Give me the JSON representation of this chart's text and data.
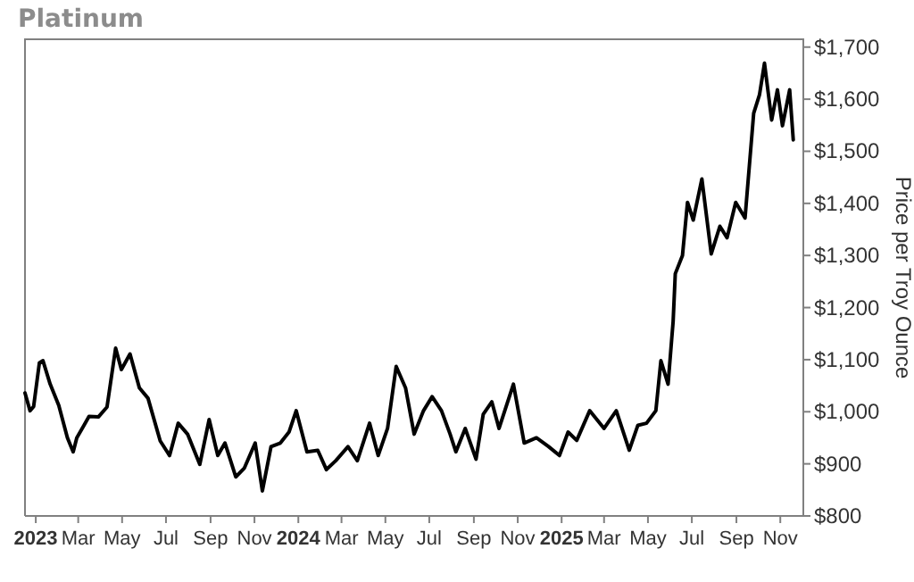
{
  "chart_data": {
    "type": "line",
    "title": "Platinum",
    "ylabel": "Price per Troy Ounce",
    "x": [
      "2022-12-17",
      "2022-12-24",
      "2022-12-29",
      "2023-01-06",
      "2023-01-11",
      "2023-01-21",
      "2023-02-02",
      "2023-02-14",
      "2023-02-22",
      "2023-02-27",
      "2023-03-09",
      "2023-03-16",
      "2023-03-29",
      "2023-04-10",
      "2023-04-22",
      "2023-04-30",
      "2023-05-12",
      "2023-05-25",
      "2023-06-06",
      "2023-06-23",
      "2023-07-06",
      "2023-07-18",
      "2023-07-31",
      "2023-08-17",
      "2023-08-30",
      "2023-09-11",
      "2023-09-21",
      "2023-10-06",
      "2023-10-18",
      "2023-11-02",
      "2023-11-12",
      "2023-11-24",
      "2023-12-07",
      "2023-12-19",
      "2023-12-29",
      "2024-01-13",
      "2024-01-28",
      "2024-02-09",
      "2024-02-22",
      "2024-03-10",
      "2024-03-23",
      "2024-04-09",
      "2024-04-21",
      "2024-05-04",
      "2024-05-16",
      "2024-05-29",
      "2024-06-10",
      "2024-06-23",
      "2024-07-05",
      "2024-07-18",
      "2024-07-30",
      "2024-08-07",
      "2024-08-20",
      "2024-09-04",
      "2024-09-14",
      "2024-09-26",
      "2024-10-06",
      "2024-10-26",
      "2024-11-10",
      "2024-11-27",
      "2024-12-14",
      "2024-12-29",
      "2025-01-10",
      "2025-01-22",
      "2025-02-09",
      "2025-03-01",
      "2025-03-18",
      "2025-04-05",
      "2025-04-17",
      "2025-04-29",
      "2025-05-12",
      "2025-05-19",
      "2025-05-29",
      "2025-06-03",
      "2025-06-05",
      "2025-06-08",
      "2025-06-18",
      "2025-06-25",
      "2025-07-03",
      "2025-07-15",
      "2025-07-28",
      "2025-08-09",
      "2025-08-19",
      "2025-08-31",
      "2025-09-13",
      "2025-09-25",
      "2025-10-03",
      "2025-10-10",
      "2025-10-20",
      "2025-10-28",
      "2025-11-04",
      "2025-11-14",
      "2025-11-19"
    ],
    "series": [
      {
        "color": "#000000",
        "values": [
          1036,
          1002,
          1010,
          1094,
          1098,
          1053,
          1012,
          950,
          923,
          950,
          974,
          991,
          990,
          1009,
          1122,
          1081,
          1111,
          1046,
          1026,
          944,
          916,
          978,
          957,
          899,
          985,
          916,
          940,
          875,
          892,
          940,
          848,
          933,
          940,
          961,
          1002,
          923,
          926,
          889,
          906,
          933,
          906,
          978,
          916,
          968,
          1087,
          1046,
          957,
          1002,
          1029,
          1002,
          957,
          923,
          968,
          909,
          995,
          1019,
          968,
          1053,
          940,
          950,
          933,
          916,
          961,
          945,
          1002,
          968,
          1002,
          926,
          974,
          978,
          1002,
          1098,
          1053,
          1139,
          1173,
          1265,
          1300,
          1402,
          1368,
          1447,
          1303,
          1356,
          1334,
          1402,
          1372,
          1573,
          1608,
          1669,
          1560,
          1618,
          1549,
          1618,
          1522
        ]
      }
    ],
    "xlim": [
      "2022-12-17",
      "2025-12-03"
    ],
    "xticks": [
      {
        "value": "2023-01-01",
        "label": "2023"
      },
      {
        "value": "2023-03-01",
        "label": "Mar"
      },
      {
        "value": "2023-05-01",
        "label": "May"
      },
      {
        "value": "2023-07-01",
        "label": "Jul"
      },
      {
        "value": "2023-09-01",
        "label": "Sep"
      },
      {
        "value": "2023-11-01",
        "label": "Nov"
      },
      {
        "value": "2024-01-01",
        "label": "2024"
      },
      {
        "value": "2024-03-01",
        "label": "Mar"
      },
      {
        "value": "2024-05-01",
        "label": "May"
      },
      {
        "value": "2024-07-01",
        "label": "Jul"
      },
      {
        "value": "2024-09-01",
        "label": "Sep"
      },
      {
        "value": "2024-11-01",
        "label": "Nov"
      },
      {
        "value": "2025-01-01",
        "label": "2025"
      },
      {
        "value": "2025-03-01",
        "label": "Mar"
      },
      {
        "value": "2025-05-01",
        "label": "May"
      },
      {
        "value": "2025-07-01",
        "label": "Jul"
      },
      {
        "value": "2025-09-01",
        "label": "Sep"
      },
      {
        "value": "2025-11-01",
        "label": "Nov"
      }
    ],
    "ylim": [
      800,
      1715
    ],
    "yticks": [
      {
        "value": 800,
        "label": "$800"
      },
      {
        "value": 900,
        "label": "$900"
      },
      {
        "value": 1000,
        "label": "$1,000"
      },
      {
        "value": 1100,
        "label": "$1,100"
      },
      {
        "value": 1200,
        "label": "$1,200"
      },
      {
        "value": 1300,
        "label": "$1,300"
      },
      {
        "value": 1400,
        "label": "$1,400"
      },
      {
        "value": 1500,
        "label": "$1,500"
      },
      {
        "value": 1600,
        "label": "$1,600"
      },
      {
        "value": 1700,
        "label": "$1,700"
      }
    ],
    "grid": false,
    "marker": "none",
    "line_style": "solid"
  }
}
